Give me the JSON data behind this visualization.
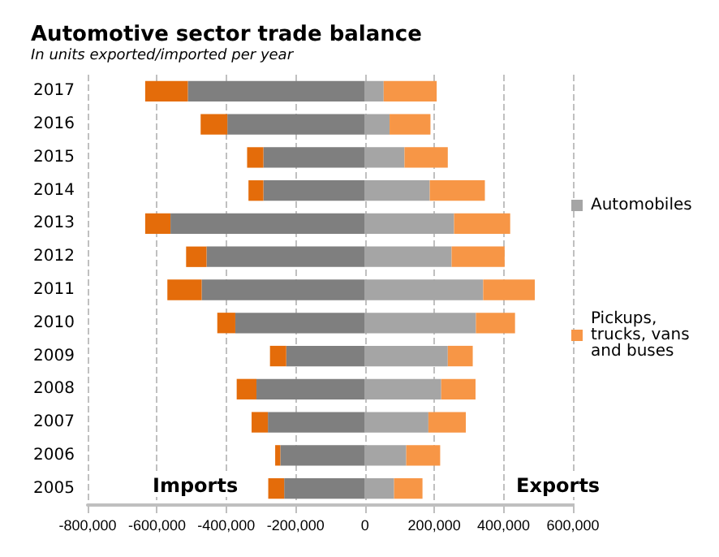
{
  "chart_data": {
    "type": "bar",
    "title": "Automotive sector trade balance",
    "subtitle": "In units exported/imported per year",
    "orientation": "horizontal",
    "stacked": true,
    "categories": [
      "2017",
      "2016",
      "2015",
      "2014",
      "2013",
      "2012",
      "2011",
      "2010",
      "2009",
      "2008",
      "2007",
      "2006",
      "2005"
    ],
    "series": [
      {
        "color": "#7f7f7f",
        "values": [
          -511000,
          -397000,
          -293000,
          -293000,
          -561000,
          -457000,
          -471000,
          -374000,
          -227000,
          -313000,
          -280000,
          -244000,
          -233000
        ]
      },
      {
        "color": "#e46c0a",
        "values": [
          -123000,
          -77000,
          -47000,
          -43000,
          -73000,
          -59000,
          -99000,
          -52000,
          -47000,
          -57000,
          -47000,
          -15000,
          -46000
        ]
      },
      {
        "name": "Automobiles",
        "color": "#a5a5a5",
        "values": [
          54000,
          71000,
          114000,
          187000,
          257000,
          250000,
          341000,
          320000,
          239000,
          220000,
          183000,
          119000,
          84000
        ]
      },
      {
        "name": "Pickups, trucks, vans and buses",
        "color": "#f79646",
        "values": [
          153000,
          118000,
          125000,
          159000,
          162000,
          153000,
          149000,
          113000,
          72000,
          99000,
          108000,
          98000,
          82000
        ]
      }
    ],
    "xlim": [
      -800000,
      600000
    ],
    "xticks": [
      {
        "value": -800000,
        "label": "-800,000"
      },
      {
        "value": -600000,
        "label": "-600,000"
      },
      {
        "value": -400000,
        "label": "-400,000"
      },
      {
        "value": -200000,
        "label": "-200,000"
      },
      {
        "value": 0,
        "label": "0"
      },
      {
        "value": 200000,
        "label": "200,000"
      },
      {
        "value": 400000,
        "label": "400,000"
      },
      {
        "value": 600000,
        "label": "600,000"
      }
    ],
    "annotations": [
      "Imports",
      "Exports"
    ],
    "grid": "x",
    "legend": "right"
  }
}
